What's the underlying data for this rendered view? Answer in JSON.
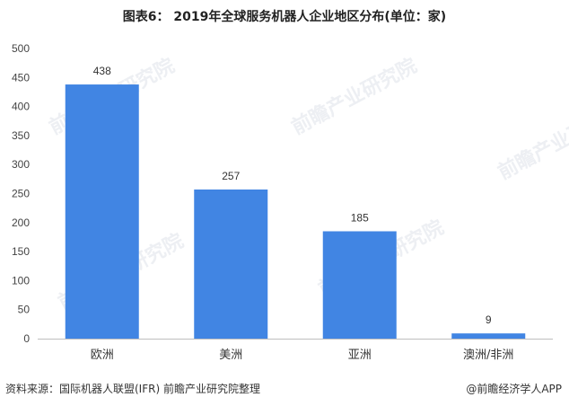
{
  "chart_data": {
    "type": "bar",
    "title": "图表6：  2019年全球服务机器人企业地区分布(单位：家)",
    "categories": [
      "欧洲",
      "美洲",
      "亚洲",
      "澳洲/非洲"
    ],
    "values": [
      438,
      257,
      185,
      9
    ],
    "ylim": [
      0,
      500
    ],
    "yticks": [
      0,
      50,
      100,
      150,
      200,
      250,
      300,
      350,
      400,
      450,
      500
    ],
    "grid": false,
    "bar_color": "#4185e3",
    "data_labels": true
  },
  "footer": {
    "source": "资料来源：国际机器人联盟(IFR)   前瞻产业研究院整理",
    "brand": "@前瞻经济学人APP"
  },
  "watermark": {
    "text": "前瞻产业研究院"
  }
}
